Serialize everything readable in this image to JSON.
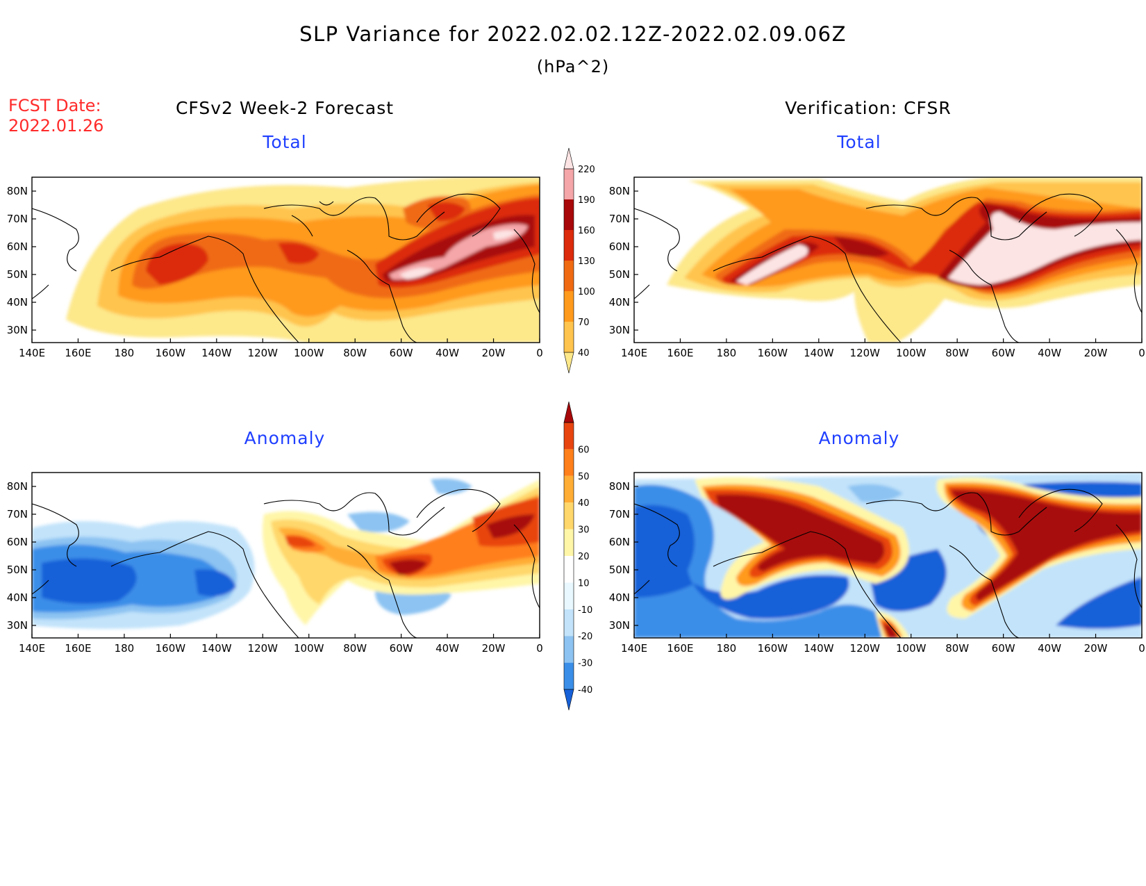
{
  "title": "SLP Variance for 2022.02.02.12Z-2022.02.09.06Z",
  "units": "(hPa^2)",
  "fcst_label": "FCST Date:",
  "fcst_date": "2022.01.26",
  "left_heading": "CFSv2 Week-2 Forecast",
  "right_heading": "Verification: CFSR",
  "panel_titles": {
    "total": "Total",
    "anomaly": "Anomaly"
  },
  "lat_labels": [
    "80N",
    "70N",
    "60N",
    "50N",
    "40N",
    "30N"
  ],
  "lon_labels": [
    "140E",
    "160E",
    "180",
    "160W",
    "140W",
    "120W",
    "100W",
    "80W",
    "60W",
    "40W",
    "20W",
    "0"
  ],
  "colorbar_total": {
    "levels": [
      "40",
      "70",
      "100",
      "130",
      "160",
      "190",
      "220"
    ],
    "colors": [
      "#fde88a",
      "#ffc44d",
      "#ff9a1c",
      "#f06a12",
      "#dc2a0c",
      "#a8080a",
      "#f4a6a8",
      "#fde4e4"
    ]
  },
  "colorbar_anomaly": {
    "levels": [
      "-40",
      "-30",
      "-20",
      "-10",
      "10",
      "20",
      "30",
      "40",
      "50",
      "60"
    ],
    "colors": [
      "#1660d8",
      "#3a8ee8",
      "#8cc3f2",
      "#c2e3fa",
      "#e9f8ff",
      "#ffffff",
      "#fff6a8",
      "#ffd76a",
      "#ffad34",
      "#ff7f1a",
      "#e84410",
      "#a8080a"
    ]
  },
  "chart_data": {
    "type": "heatmap",
    "title": "SLP Variance for 2022.02.02.12Z-2022.02.09.06Z",
    "units": "(hPa^2)",
    "lat_range": [
      "25N",
      "85N"
    ],
    "lon_range": [
      "140E",
      "0"
    ],
    "panels": [
      {
        "column": "CFSv2 Week-2 Forecast",
        "field": "Total",
        "max_regions": [
          "Labrador Sea to Iceland (>190)",
          "North Pacific 170W 50N (130-160)",
          "western Canada 110W 55N (130-160)"
        ]
      },
      {
        "column": "Verification: CFSR",
        "field": "Total",
        "max_regions": [
          "Gulf of Alaska band 165W-140W (>220)",
          "Newfoundland to Norwegian Sea (>220)",
          "Greenland east coast (>190)"
        ]
      },
      {
        "column": "CFSv2 Week-2 Forecast",
        "field": "Anomaly",
        "max_regions": [
          "Newfoundland 60W 50N (>60)",
          "Iceland area 20W 65N (>50)",
          "North Pacific 170W-140W 45N (<-40)"
        ]
      },
      {
        "column": "Verification: CFSR",
        "field": "Anomaly",
        "max_regions": [
          "Gulf of Alaska band (>60)",
          "North Atlantic storm track (>60)",
          "Siberia / North Pacific (<-40)"
        ]
      }
    ]
  }
}
